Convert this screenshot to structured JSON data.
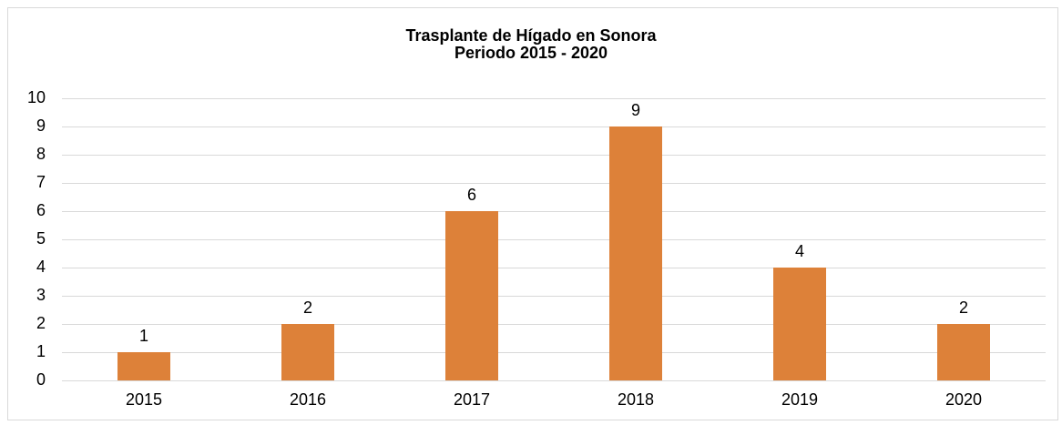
{
  "chart_data": {
    "type": "bar",
    "title": "Trasplante de Hígado en Sonora",
    "subtitle": "Periodo 2015 - 2020",
    "categories": [
      "2015",
      "2016",
      "2017",
      "2018",
      "2019",
      "2020"
    ],
    "values": [
      1,
      2,
      6,
      9,
      4,
      2
    ],
    "color": "#dd8139",
    "ylim": [
      0,
      10
    ],
    "yticks": [
      0,
      1,
      2,
      3,
      4,
      5,
      6,
      7,
      8,
      9,
      10
    ],
    "grid": true
  }
}
